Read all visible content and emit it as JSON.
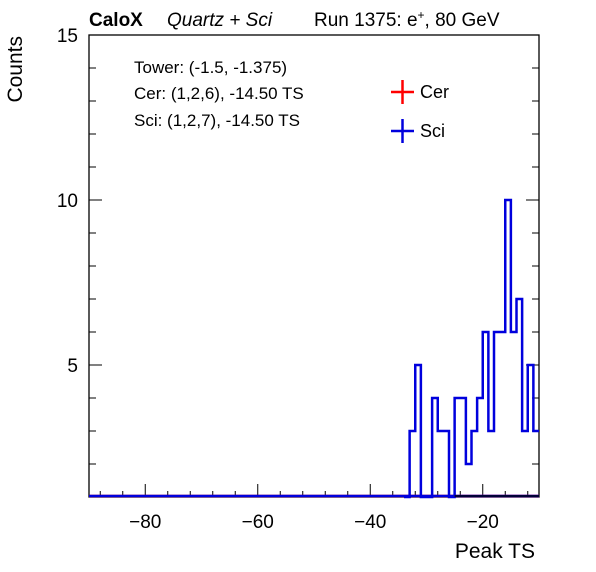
{
  "header": {
    "brand": "CaloX",
    "subtitle": "Quartz + Sci",
    "run": "Run 1375: e",
    "run_sup": "+",
    "run_tail": ", 80 GeV"
  },
  "info": {
    "tower": "Tower: (-1.5, -1.375)",
    "cer": "Cer: (1,2,6), -14.50 TS",
    "sci": "Sci: (1,2,7), -14.50 TS"
  },
  "chart_data": {
    "type": "histogram",
    "xlabel": "Peak TS",
    "ylabel": "Counts",
    "xlim": [
      -90,
      -10
    ],
    "ylim": [
      1,
      15
    ],
    "x_ticks": [
      -80,
      -60,
      -40,
      -20
    ],
    "x_tick_labels": [
      "−80",
      "−60",
      "−40",
      "−20"
    ],
    "y_ticks": [
      5,
      10,
      15
    ],
    "y_tick_labels": [
      "5",
      "10",
      "15"
    ],
    "bin_width": 1,
    "legend_placement": "top-right",
    "series": [
      {
        "name": "Cer",
        "color": "#ff0000",
        "bins_start": [],
        "values": []
      },
      {
        "name": "Sci",
        "color": "#0000dd",
        "bins_start": [
          -34,
          -33,
          -32,
          -31,
          -30,
          -29,
          -28,
          -27,
          -26,
          -25,
          -24,
          -23,
          -22,
          -21,
          -20,
          -19,
          -18,
          -17,
          -16,
          -15,
          -14,
          -13,
          -12,
          -11
        ],
        "values": [
          0,
          3,
          5,
          0,
          0,
          4,
          3,
          3,
          0,
          4,
          4,
          2,
          3,
          4,
          6,
          3,
          6,
          6,
          10,
          6,
          7,
          3,
          5,
          3
        ]
      }
    ]
  }
}
